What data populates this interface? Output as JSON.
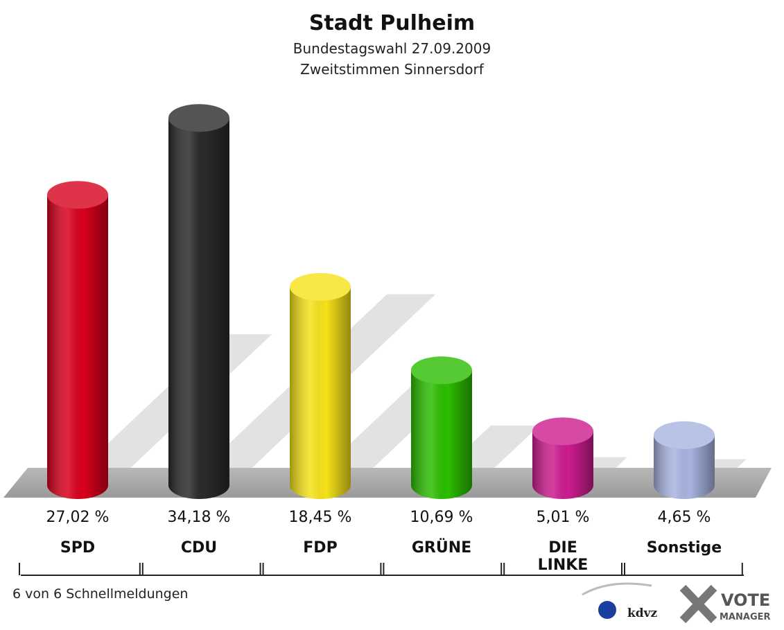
{
  "chart_data": {
    "type": "bar",
    "title": "Stadt Pulheim",
    "subtitle": [
      "Bundestagswahl 27.09.2009",
      "Zweitstimmen Sinnersdorf"
    ],
    "categories": [
      "SPD",
      "CDU",
      "FDP",
      "GRÜNE",
      "DIE\nLINKE",
      "Sonstige"
    ],
    "values": [
      27.02,
      34.18,
      18.45,
      10.69,
      5.01,
      4.65
    ],
    "value_labels": [
      "27,02 %",
      "34,18 %",
      "18,45 %",
      "10,69 %",
      "5,01 %",
      "4,65 %"
    ],
    "colors": [
      "#d8001c",
      "#2a2a2a",
      "#f5e21a",
      "#2cbd00",
      "#cc1c8e",
      "#a7b4e0"
    ],
    "footnote": "6 von 6 Schnellmeldungen",
    "logo": [
      "kdvz",
      "VOTE",
      "MANAGER"
    ]
  }
}
